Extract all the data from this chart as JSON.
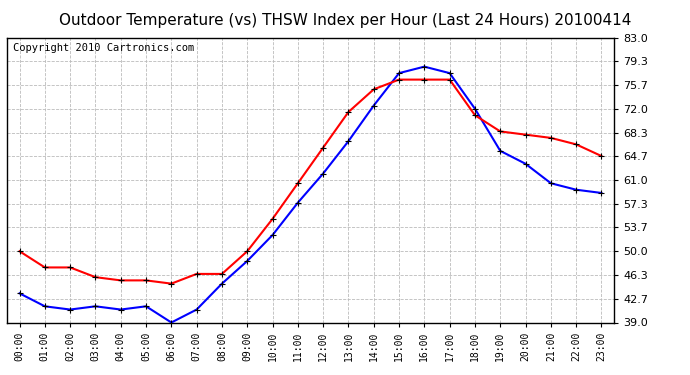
{
  "title": "Outdoor Temperature (vs) THSW Index per Hour (Last 24 Hours) 20100414",
  "copyright": "Copyright 2010 Cartronics.com",
  "x_labels": [
    "00:00",
    "01:00",
    "02:00",
    "03:00",
    "04:00",
    "05:00",
    "06:00",
    "07:00",
    "08:00",
    "09:00",
    "10:00",
    "11:00",
    "12:00",
    "13:00",
    "14:00",
    "15:00",
    "16:00",
    "17:00",
    "18:00",
    "19:00",
    "20:00",
    "21:00",
    "22:00",
    "23:00"
  ],
  "outdoor_temp": [
    43.5,
    41.5,
    41.0,
    41.5,
    41.0,
    41.5,
    39.0,
    41.0,
    45.0,
    48.5,
    52.5,
    57.5,
    62.0,
    67.0,
    72.5,
    77.5,
    78.5,
    77.5,
    72.0,
    65.5,
    63.5,
    60.5,
    59.5,
    59.0
  ],
  "thsw_index": [
    50.0,
    47.5,
    47.5,
    46.0,
    45.5,
    45.5,
    45.0,
    46.5,
    46.5,
    50.0,
    55.0,
    60.5,
    66.0,
    71.5,
    75.0,
    76.5,
    76.5,
    76.5,
    71.0,
    68.5,
    68.0,
    67.5,
    66.5,
    64.7
  ],
  "blue_color": "#0000FF",
  "red_color": "#FF0000",
  "background_color": "#FFFFFF",
  "grid_color": "#BBBBBB",
  "ylim": [
    39.0,
    83.0
  ],
  "yticks": [
    39.0,
    42.7,
    46.3,
    50.0,
    53.7,
    57.3,
    61.0,
    64.7,
    68.3,
    72.0,
    75.7,
    79.3,
    83.0
  ],
  "title_fontsize": 11,
  "copyright_fontsize": 7.5
}
